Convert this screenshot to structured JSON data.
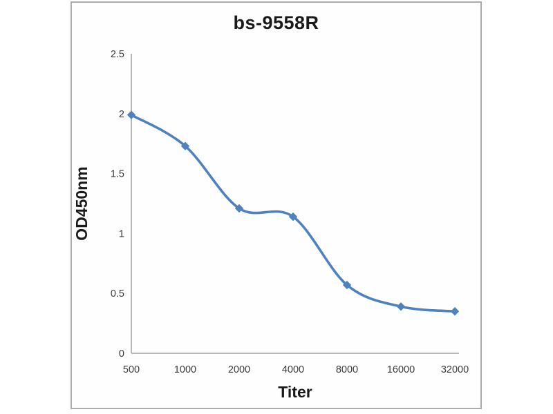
{
  "chart_data": {
    "type": "line",
    "title": "bs-9558R",
    "xlabel": "Titer",
    "ylabel": "OD450nm",
    "categories": [
      "500",
      "1000",
      "2000",
      "4000",
      "8000",
      "16000",
      "32000"
    ],
    "series": [
      {
        "name": "OD450nm",
        "values": [
          1.99,
          1.73,
          1.21,
          1.14,
          0.57,
          0.39,
          0.35
        ],
        "color": "#4F81BD",
        "marker": "diamond",
        "smooth": true
      }
    ],
    "ylim": [
      0,
      2.5
    ],
    "ytick_step": 0.5,
    "yticks": [
      "0",
      "0.5",
      "1",
      "1.5",
      "2",
      "2.5"
    ],
    "grid": false,
    "legend": "none",
    "axis_color": "#a3a3a3",
    "tick_label_color": "#3a3a3a",
    "title_color": "#1a1a1a"
  }
}
